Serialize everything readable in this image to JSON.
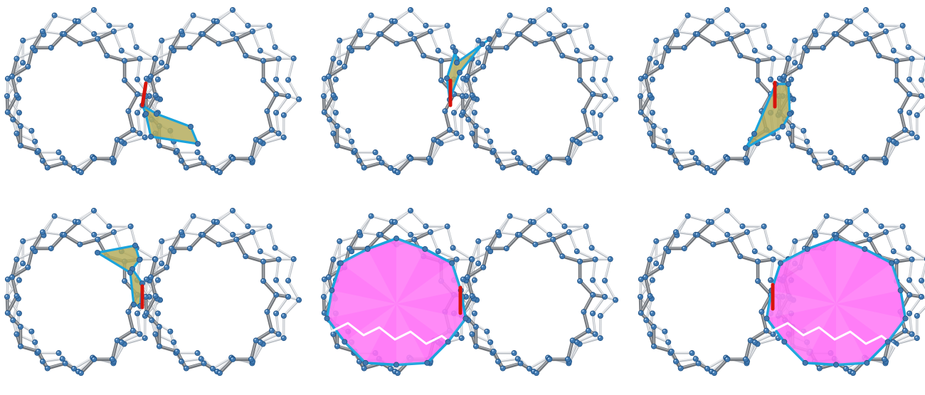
{
  "panels": [
    {
      "id": "p1",
      "highlight": "ring",
      "variant": 0
    },
    {
      "id": "p2",
      "highlight": "ring",
      "variant": 1
    },
    {
      "id": "p3",
      "highlight": "ring",
      "variant": 2
    },
    {
      "id": "p4",
      "highlight": "ring",
      "variant": 3
    },
    {
      "id": "p5",
      "highlight": "cage",
      "variant": 4
    },
    {
      "id": "p6",
      "highlight": "cage",
      "variant": 5
    }
  ],
  "colors": {
    "atom": "#3f78b0",
    "bond_back": "#b9bec4",
    "bond_front": "#6e7277",
    "ring_fill": "#b5ad5e",
    "ring_outline": "#1aa3dc",
    "cage_fill": "#ff6ff6",
    "highlight_bond": "#d8140c"
  }
}
